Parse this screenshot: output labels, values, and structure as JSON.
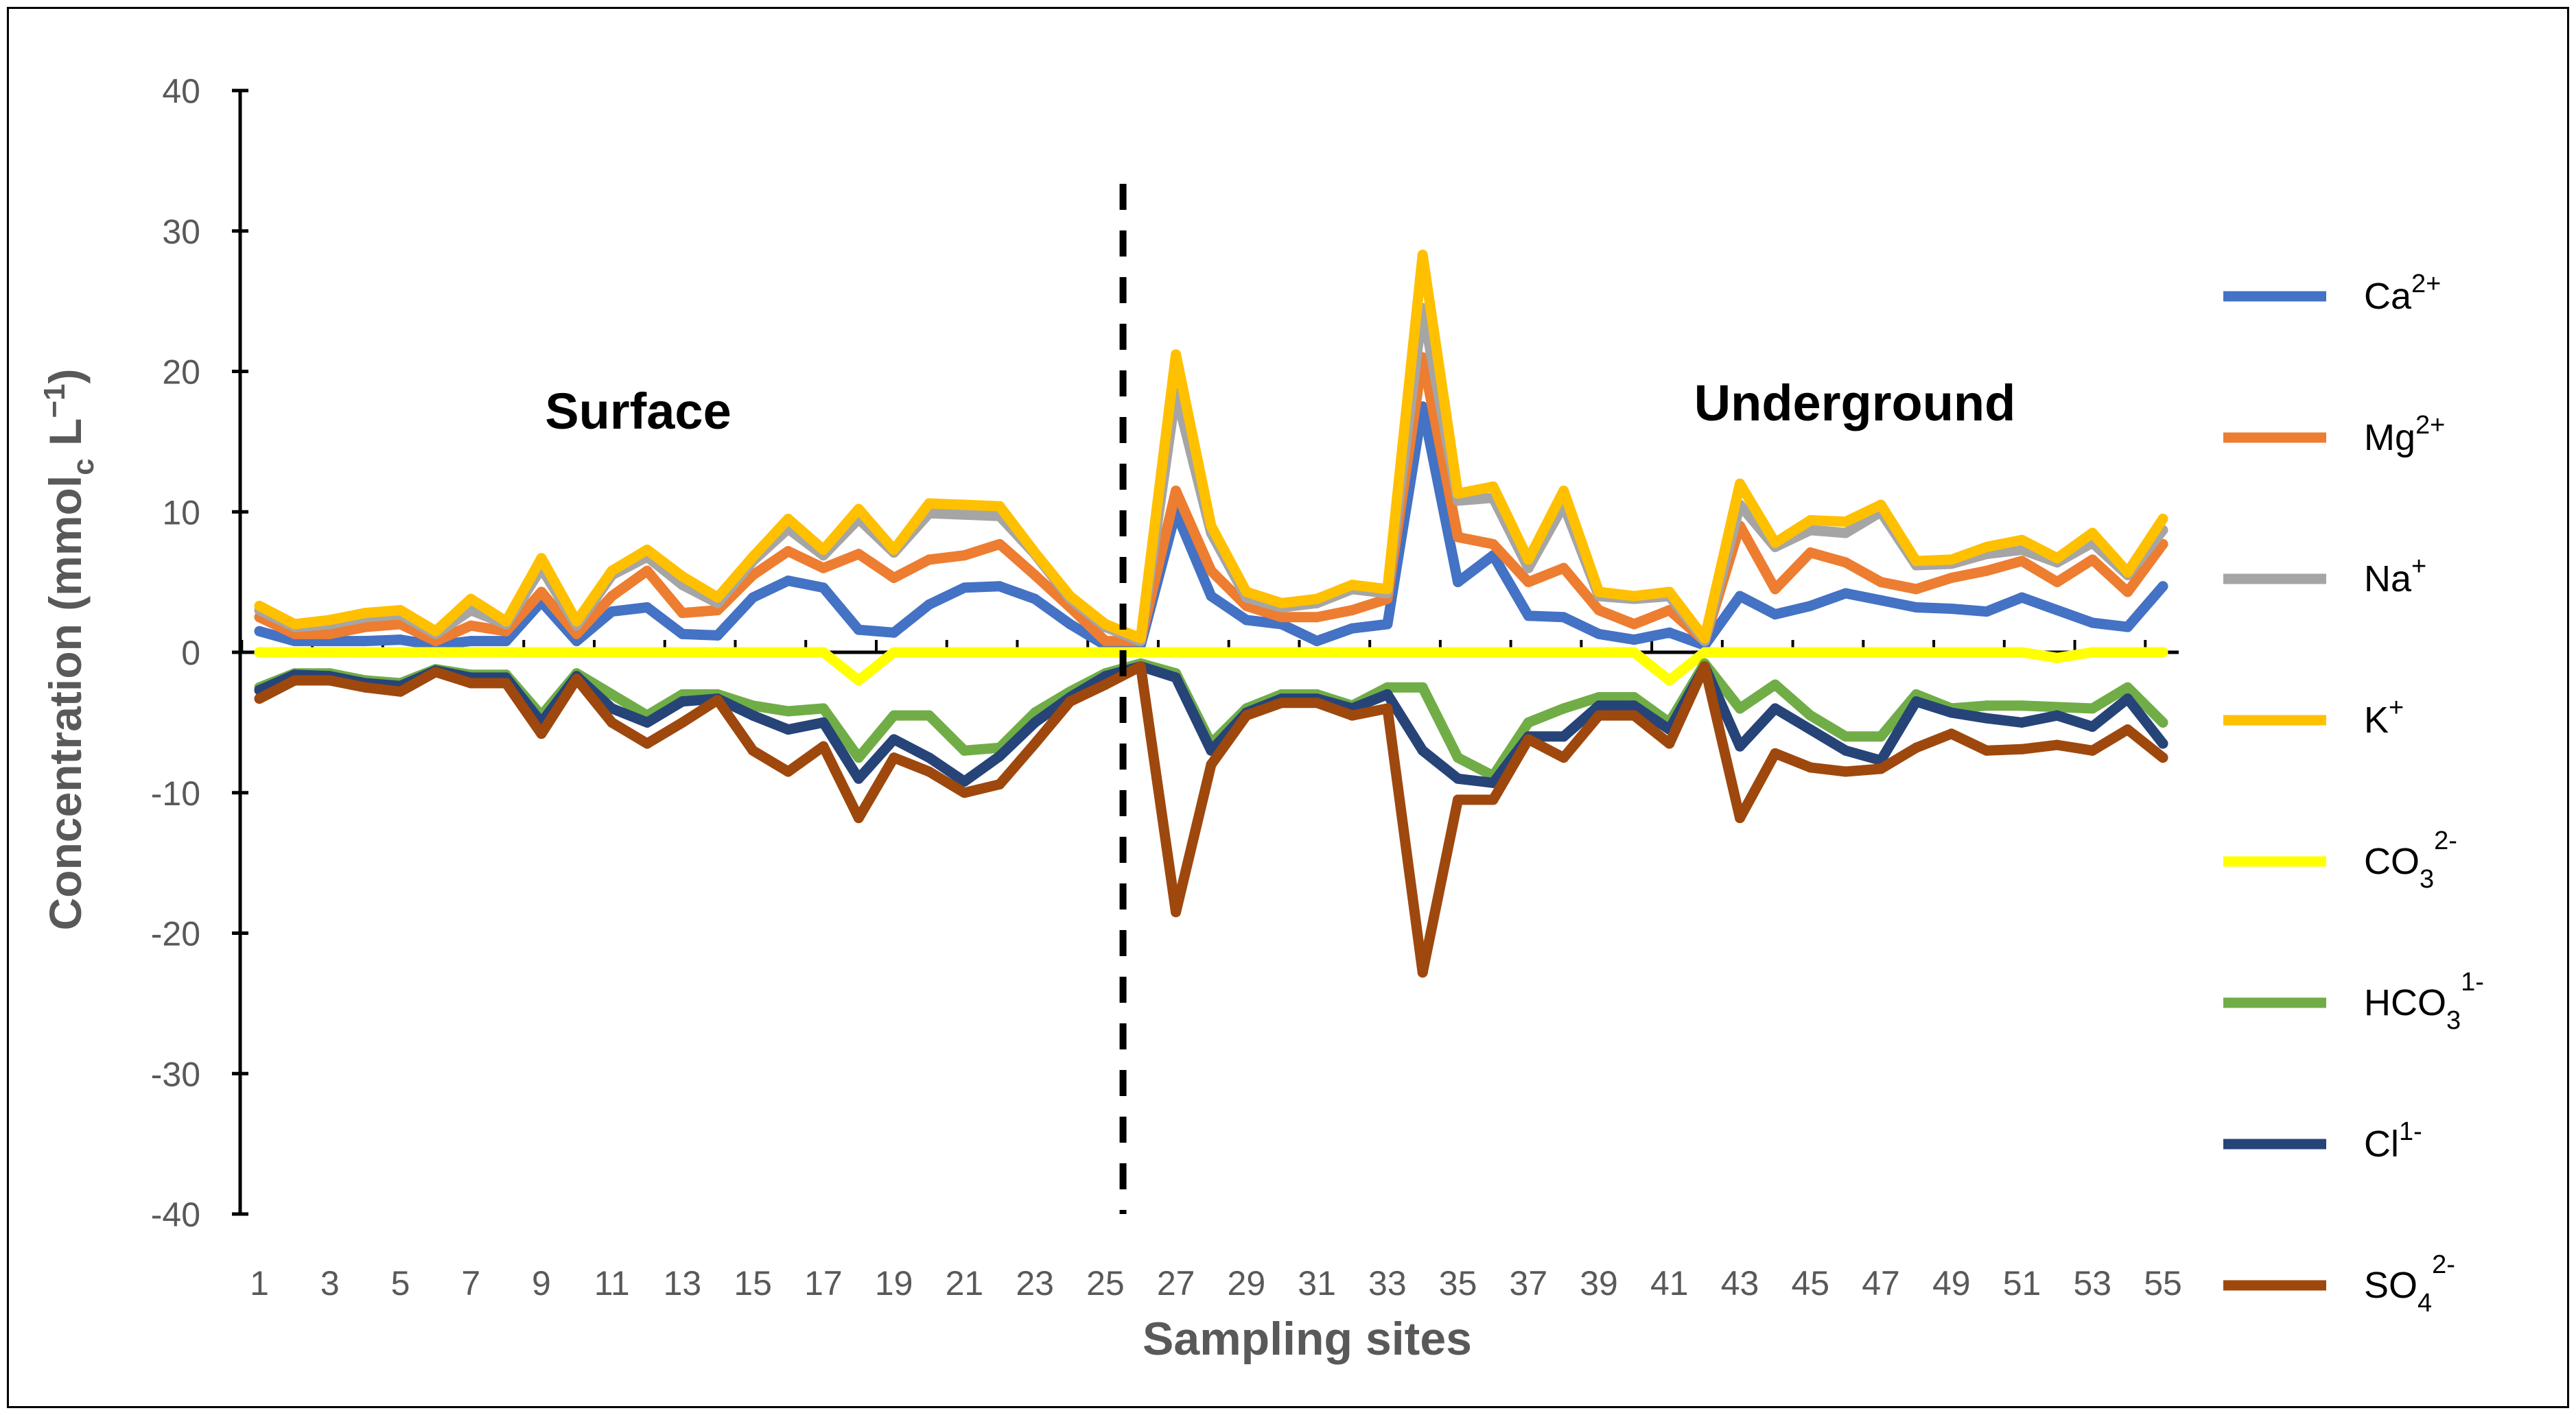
{
  "chart_data": {
    "type": "line",
    "title": "",
    "xlabel": "Sampling sites",
    "ylabel": {
      "main": "Concentration (mmol",
      "sub": "c",
      "unit": " L",
      "sup": "−1",
      "close": ")"
    },
    "ylim": [
      -40,
      40
    ],
    "xlim": [
      1,
      55
    ],
    "yticks": [
      -40,
      -30,
      -20,
      -10,
      0,
      10,
      20,
      30,
      40
    ],
    "xtick_labels": [
      "1",
      "3",
      "5",
      "7",
      "9",
      "11",
      "13",
      "15",
      "17",
      "19",
      "21",
      "23",
      "25",
      "27",
      "29",
      "31",
      "33",
      "35",
      "37",
      "39",
      "41",
      "43",
      "45",
      "47",
      "49",
      "51",
      "53",
      "55"
    ],
    "divider_x": 25.5,
    "annotations": {
      "left": "Surface",
      "right": "Underground"
    },
    "legend_position": "right",
    "x": [
      1,
      2,
      3,
      4,
      5,
      6,
      7,
      8,
      9,
      10,
      11,
      12,
      13,
      14,
      15,
      16,
      17,
      18,
      19,
      20,
      21,
      22,
      23,
      24,
      25,
      26,
      27,
      28,
      29,
      30,
      31,
      32,
      33,
      34,
      35,
      36,
      37,
      38,
      39,
      40,
      41,
      42,
      43,
      44,
      45,
      46,
      47,
      48,
      49,
      50,
      51,
      52,
      53,
      54,
      55
    ],
    "series": [
      {
        "name": "Ca",
        "sup": "2+",
        "sub": "",
        "color": "#4472C4",
        "values": [
          1.5,
          0.8,
          0.8,
          0.8,
          0.9,
          0.5,
          0.8,
          0.8,
          3.6,
          0.8,
          2.9,
          3.2,
          1.3,
          1.2,
          3.9,
          5.1,
          4.6,
          1.6,
          1.4,
          3.4,
          4.6,
          4.7,
          3.8,
          2.0,
          0.5,
          0.5,
          10.0,
          4.0,
          2.3,
          2.0,
          0.8,
          1.7,
          2.0,
          17.5,
          5.0,
          6.9,
          2.6,
          2.5,
          1.3,
          0.9,
          1.4,
          0.5,
          4.0,
          2.7,
          3.3,
          4.2,
          3.7,
          3.2,
          3.1,
          2.9,
          3.9,
          3.0,
          2.1,
          1.8,
          4.7
        ]
      },
      {
        "name": "Mg",
        "sup": "2+",
        "sub": "",
        "color": "#ED7D31",
        "values": [
          2.5,
          1.3,
          1.3,
          1.8,
          2.0,
          0.8,
          1.9,
          1.5,
          4.3,
          1.3,
          4.0,
          5.8,
          2.8,
          3.0,
          5.5,
          7.2,
          6.0,
          7.0,
          5.3,
          6.6,
          6.9,
          7.7,
          5.5,
          3.2,
          0.8,
          0.8,
          11.5,
          5.8,
          3.3,
          2.5,
          2.5,
          3.0,
          3.8,
          21.0,
          8.2,
          7.7,
          5.0,
          6.0,
          3.0,
          2.0,
          3.0,
          0.8,
          9.0,
          4.5,
          7.1,
          6.4,
          5.0,
          4.5,
          5.3,
          5.8,
          6.5,
          5.0,
          6.6,
          4.3,
          7.7
        ]
      },
      {
        "name": "Na",
        "sup": "+",
        "sub": "",
        "color": "#A5A5A5",
        "values": [
          3.0,
          1.8,
          2.0,
          2.5,
          2.7,
          1.3,
          3.0,
          2.0,
          6.0,
          1.9,
          5.5,
          6.8,
          4.8,
          3.5,
          6.5,
          8.8,
          6.9,
          9.5,
          7.1,
          9.9,
          9.8,
          9.7,
          7.0,
          3.8,
          1.8,
          0.8,
          18.5,
          8.5,
          3.9,
          3.2,
          3.5,
          4.5,
          4.2,
          24.5,
          10.8,
          11.0,
          6.0,
          10.5,
          4.0,
          3.8,
          4.0,
          0.8,
          10.5,
          7.5,
          8.7,
          8.5,
          10.0,
          6.2,
          6.3,
          7.0,
          7.3,
          6.4,
          7.8,
          5.5,
          8.7
        ]
      },
      {
        "name": "K",
        "sup": "+",
        "sub": "",
        "color": "#FFC000",
        "values": [
          3.3,
          2.0,
          2.3,
          2.8,
          3.0,
          1.5,
          3.8,
          2.2,
          6.7,
          2.2,
          5.8,
          7.3,
          5.4,
          3.9,
          6.8,
          9.5,
          7.3,
          10.2,
          7.3,
          10.6,
          10.5,
          10.4,
          7.1,
          4.0,
          2.0,
          1.0,
          21.2,
          9.0,
          4.3,
          3.5,
          3.8,
          4.8,
          4.5,
          28.3,
          11.3,
          11.8,
          6.6,
          11.5,
          4.3,
          4.0,
          4.3,
          1.0,
          12.0,
          7.8,
          9.4,
          9.3,
          10.5,
          6.5,
          6.6,
          7.5,
          8.0,
          6.7,
          8.5,
          5.7,
          9.5
        ]
      },
      {
        "name": "CO",
        "sup": "2-",
        "sub": "3",
        "color": "#FFFF00",
        "values": [
          0,
          0,
          0,
          0,
          0,
          0,
          0,
          0,
          0,
          0,
          0,
          0,
          0,
          0,
          0,
          0,
          0,
          -2.0,
          0,
          0,
          0,
          0,
          0,
          0,
          0,
          0,
          0,
          0,
          0,
          0,
          0,
          0,
          0,
          0,
          0,
          0,
          0,
          0,
          0,
          0,
          -2.0,
          0,
          0,
          0,
          0,
          0,
          0,
          0,
          0,
          0,
          0,
          -0.4,
          0,
          0,
          0
        ]
      },
      {
        "name": "HCO",
        "sup": "1-",
        "sub": "3",
        "color": "#70AD47",
        "values": [
          -2.5,
          -1.5,
          -1.5,
          -2.0,
          -2.2,
          -1.2,
          -1.6,
          -1.6,
          -4.5,
          -1.5,
          -3.0,
          -4.5,
          -3.0,
          -3.0,
          -3.8,
          -4.2,
          -4.0,
          -7.5,
          -4.5,
          -4.5,
          -7.0,
          -6.8,
          -4.3,
          -2.8,
          -1.5,
          -0.8,
          -1.5,
          -6.5,
          -4.0,
          -3.0,
          -3.0,
          -3.8,
          -2.5,
          -2.5,
          -7.5,
          -8.8,
          -5.0,
          -4.0,
          -3.2,
          -3.2,
          -5.0,
          -0.8,
          -4.0,
          -2.3,
          -4.5,
          -6.0,
          -6.0,
          -3.0,
          -4.0,
          -3.8,
          -3.8,
          -3.9,
          -4.0,
          -2.5,
          -5.0
        ]
      },
      {
        "name": "Cl",
        "sup": "1-",
        "sub": "",
        "color": "#264478",
        "values": [
          -2.7,
          -1.6,
          -1.7,
          -2.2,
          -2.4,
          -1.3,
          -1.8,
          -1.8,
          -5.0,
          -1.7,
          -4.0,
          -5.0,
          -3.5,
          -3.3,
          -4.5,
          -5.5,
          -5.0,
          -9.0,
          -6.2,
          -7.5,
          -9.2,
          -7.4,
          -5.0,
          -3.2,
          -1.7,
          -1.0,
          -1.8,
          -7.0,
          -4.3,
          -3.3,
          -3.3,
          -4.0,
          -3.0,
          -7.0,
          -9.0,
          -9.3,
          -6.0,
          -6.0,
          -3.8,
          -3.8,
          -5.5,
          -1.0,
          -6.7,
          -4.0,
          -5.5,
          -7.0,
          -7.7,
          -3.5,
          -4.3,
          -4.7,
          -5.0,
          -4.5,
          -5.3,
          -3.3,
          -6.5
        ]
      },
      {
        "name": "SO",
        "sup": "2-",
        "sub": "4",
        "color": "#9E480E",
        "values": [
          -3.3,
          -2.0,
          -2.0,
          -2.5,
          -2.8,
          -1.4,
          -2.2,
          -2.2,
          -5.8,
          -1.9,
          -5.0,
          -6.5,
          -5.0,
          -3.4,
          -7.0,
          -8.5,
          -6.7,
          -11.8,
          -7.5,
          -8.5,
          -10.0,
          -9.4,
          -6.5,
          -3.5,
          -2.3,
          -1.0,
          -18.5,
          -8.0,
          -4.5,
          -3.6,
          -3.6,
          -4.5,
          -4.0,
          -22.8,
          -10.5,
          -10.5,
          -6.2,
          -7.5,
          -4.5,
          -4.5,
          -6.5,
          -1.0,
          -11.8,
          -7.2,
          -8.2,
          -8.5,
          -8.3,
          -6.8,
          -5.8,
          -7.0,
          -6.9,
          -6.6,
          -7.0,
          -5.5,
          -7.5
        ]
      }
    ]
  }
}
